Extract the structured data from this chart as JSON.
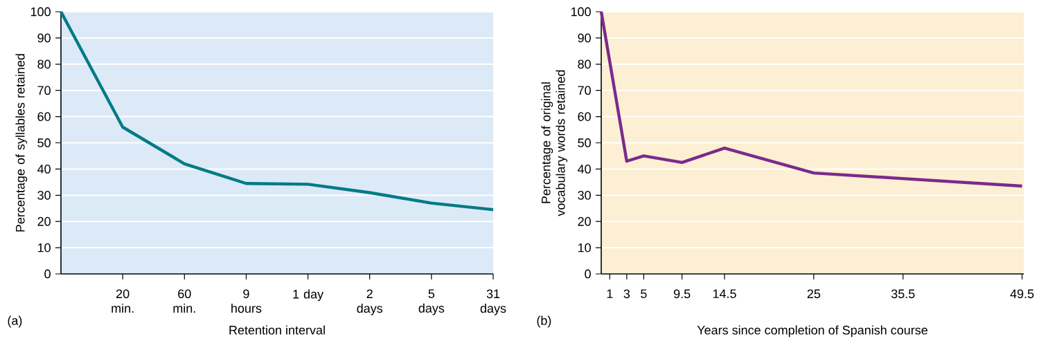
{
  "chart_data": [
    {
      "type": "line",
      "xlabel": "Retention interval",
      "ylabel": "Percentage of syllables retained",
      "annotations": [
        "(a)"
      ],
      "categories": [
        null,
        "20 min.",
        "60 min.",
        "9 hours",
        "1 day",
        "2 days",
        "5 days",
        "31 days"
      ],
      "series": [
        {
          "color": "#007a87",
          "values": [
            100,
            56,
            42,
            34.5,
            34.2,
            31,
            27,
            24.5
          ]
        }
      ],
      "ylim": [
        0,
        100
      ],
      "yticks": [
        0,
        10,
        20,
        30,
        40,
        50,
        60,
        70,
        80,
        90,
        100
      ],
      "grid": "y"
    },
    {
      "type": "line",
      "xlabel": "Years since completion of Spanish course",
      "ylabel": "Percentage of original vocabulary words retained",
      "annotations": [
        "(b)"
      ],
      "x": [
        0,
        3,
        5,
        9.5,
        14.5,
        25,
        49.5
      ],
      "series": [
        {
          "color": "#7b2a8c",
          "values": [
            100,
            43,
            45,
            42.5,
            48,
            38.5,
            33.5
          ]
        }
      ],
      "xlim": [
        0,
        49.7
      ],
      "xticks": [
        1,
        3,
        5,
        9.5,
        14.5,
        25,
        35.5,
        49.5
      ],
      "ylim": [
        0,
        100
      ],
      "yticks": [
        0,
        10,
        20,
        30,
        40,
        50,
        60,
        70,
        80,
        90,
        100
      ],
      "grid": "y"
    }
  ]
}
